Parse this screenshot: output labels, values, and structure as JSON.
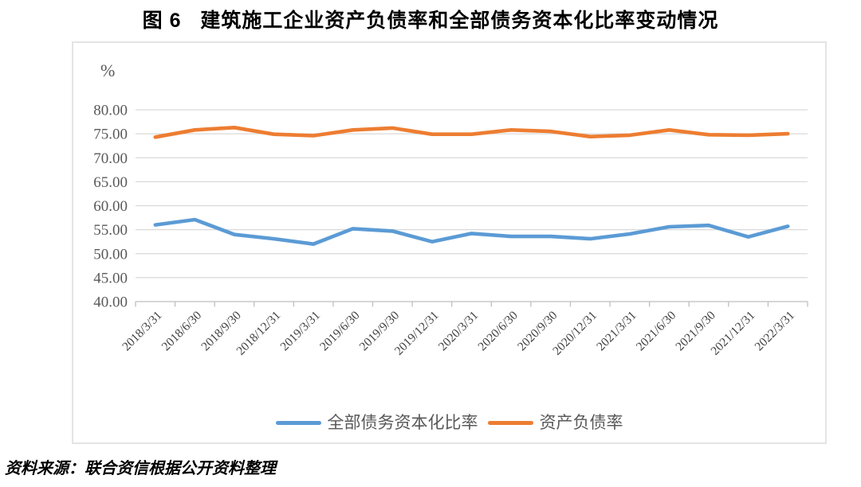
{
  "source_note": "资料来源：联合资信根据公开资料整理",
  "chart_data": {
    "type": "line",
    "title": "图 6   建筑施工企业资产负债率和全部债务资本化比率变动情况",
    "unit_label": "%",
    "categories": [
      "2018/3/31",
      "2018/6/30",
      "2018/9/30",
      "2018/12/31",
      "2019/3/31",
      "2019/6/30",
      "2019/9/30",
      "2019/12/31",
      "2020/3/31",
      "2020/6/30",
      "2020/9/30",
      "2020/12/31",
      "2021/3/31",
      "2021/6/30",
      "2021/9/30",
      "2021/12/31",
      "2022/3/31"
    ],
    "series": [
      {
        "name": "全部债务资本化比率",
        "color": "#5B9BD5",
        "values": [
          56.0,
          57.1,
          54.0,
          53.1,
          52.0,
          55.2,
          54.7,
          52.5,
          54.2,
          53.6,
          53.6,
          53.1,
          54.1,
          55.6,
          55.9,
          53.5,
          55.7
        ]
      },
      {
        "name": "资产负债率",
        "color": "#ED7D31",
        "values": [
          74.3,
          75.8,
          76.3,
          74.9,
          74.6,
          75.8,
          76.2,
          74.9,
          74.9,
          75.8,
          75.5,
          74.4,
          74.7,
          75.8,
          74.8,
          74.7,
          75.0
        ]
      }
    ],
    "ylim": [
      40,
      80
    ],
    "ytick_step": 5,
    "ytick_format": "two-decimals",
    "grid": true,
    "legend_position": "bottom",
    "x_label_rotation": -45,
    "colors": {
      "gridline": "#D9D9D9",
      "axis_line": "#BFBFBF",
      "tick_label": "#595959",
      "x_label": "#404040"
    }
  }
}
